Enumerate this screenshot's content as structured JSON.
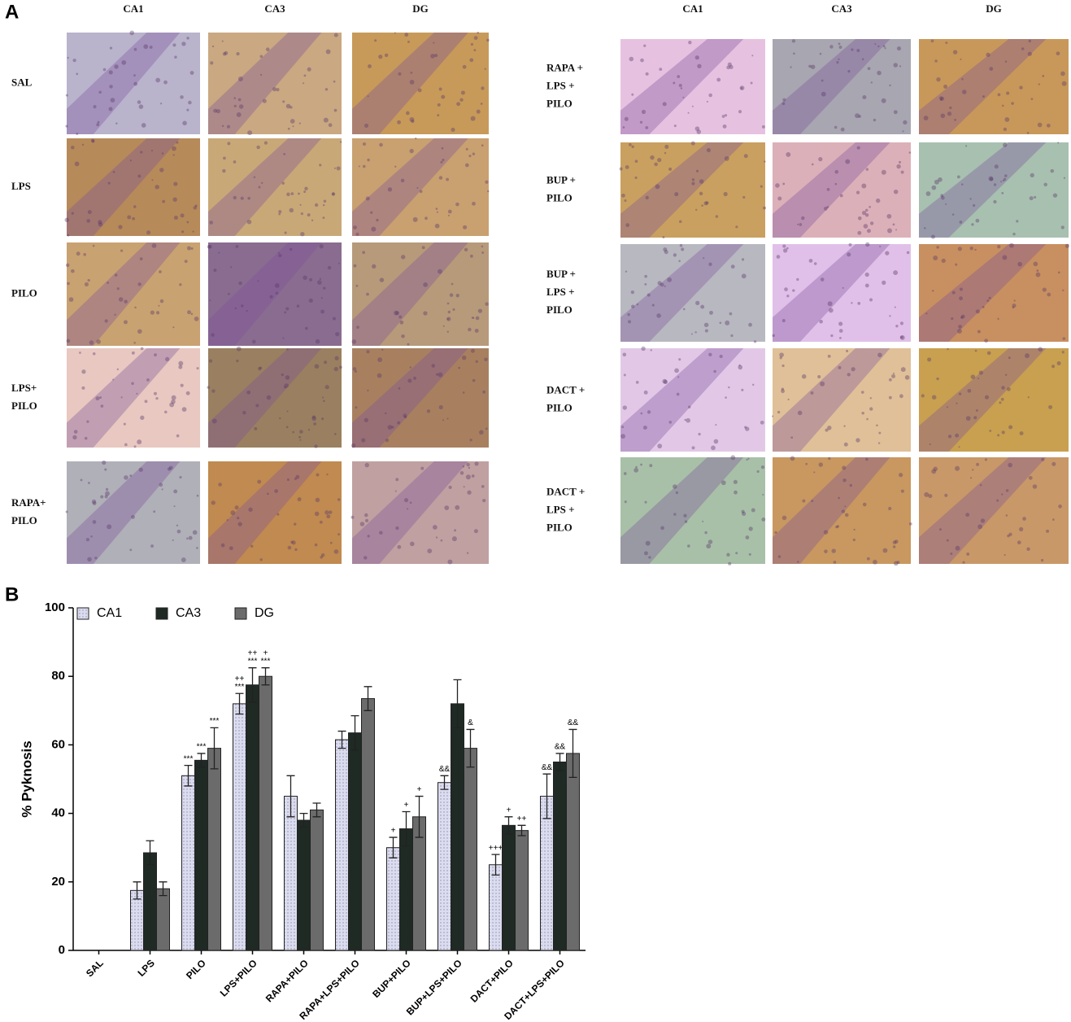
{
  "panel_a": {
    "label": "A",
    "left": {
      "columns": [
        "CA1",
        "CA3",
        "DG"
      ],
      "rows": [
        [
          "SAL"
        ],
        [
          "LPS"
        ],
        [
          "PILO"
        ],
        [
          "LPS+",
          "PILO"
        ],
        [
          "RAPA+",
          "PILO"
        ]
      ]
    },
    "right": {
      "columns": [
        "CA1",
        "CA3",
        "DG"
      ],
      "rows": [
        [
          "RAPA +",
          "LPS +",
          "PILO"
        ],
        [
          "BUP +",
          "PILO"
        ],
        [
          "BUP +",
          "LPS +",
          "PILO"
        ],
        [
          "DACT +",
          "PILO"
        ],
        [
          "DACT +",
          "LPS +",
          "PILO"
        ]
      ]
    }
  },
  "panel_b_label": "B",
  "chart_data": {
    "type": "bar",
    "y_label": "% Pyknosis",
    "categories": [
      "SAL",
      "LPS",
      "PILO",
      "LPS+PILO",
      "RAPA+PILO",
      "RAPA+LPS+PILO",
      "BUP+PILO",
      "BUP+LPS+PILO",
      "DACT+PILO",
      "DACT+LPS+PILO"
    ],
    "series": [
      {
        "name": "CA1",
        "color": "#d9d9ee",
        "values": [
          0,
          17.5,
          51,
          72,
          45,
          61.5,
          30,
          49,
          25,
          45
        ],
        "errors": [
          null,
          2.5,
          3,
          3,
          6,
          2.5,
          3,
          2,
          3,
          6.5
        ],
        "significance": [
          null,
          null,
          [
            "***"
          ],
          [
            "++",
            "***"
          ],
          null,
          null,
          [
            "+"
          ],
          [
            "&&"
          ],
          [
            "+++"
          ],
          [
            "&&"
          ]
        ]
      },
      {
        "name": "CA3",
        "color": "#1f2a25",
        "values": [
          0,
          28.5,
          55.5,
          77.5,
          38,
          63.5,
          35.5,
          72,
          36.5,
          55
        ],
        "errors": [
          null,
          3.5,
          2,
          5,
          2,
          5,
          5,
          7,
          2.5,
          2.5
        ],
        "significance": [
          null,
          null,
          [
            "***"
          ],
          [
            "++",
            "***"
          ],
          null,
          null,
          [
            "+"
          ],
          null,
          [
            "+"
          ],
          [
            "&&"
          ]
        ]
      },
      {
        "name": "DG",
        "color": "#6b6b6b",
        "values": [
          0,
          18,
          59,
          80,
          41,
          73.5,
          39,
          59,
          35,
          57.5
        ],
        "errors": [
          null,
          2,
          6,
          2.5,
          2,
          3.5,
          6,
          5.5,
          1.5,
          7
        ],
        "significance": [
          null,
          null,
          [
            "***"
          ],
          [
            "+",
            "***"
          ],
          null,
          null,
          [
            "+"
          ],
          [
            "&"
          ],
          [
            "++"
          ],
          [
            "&&"
          ]
        ]
      }
    ],
    "ylim": [
      0,
      100
    ],
    "yticks": [
      0,
      20,
      40,
      60,
      80,
      100
    ],
    "legend": "top-left"
  }
}
